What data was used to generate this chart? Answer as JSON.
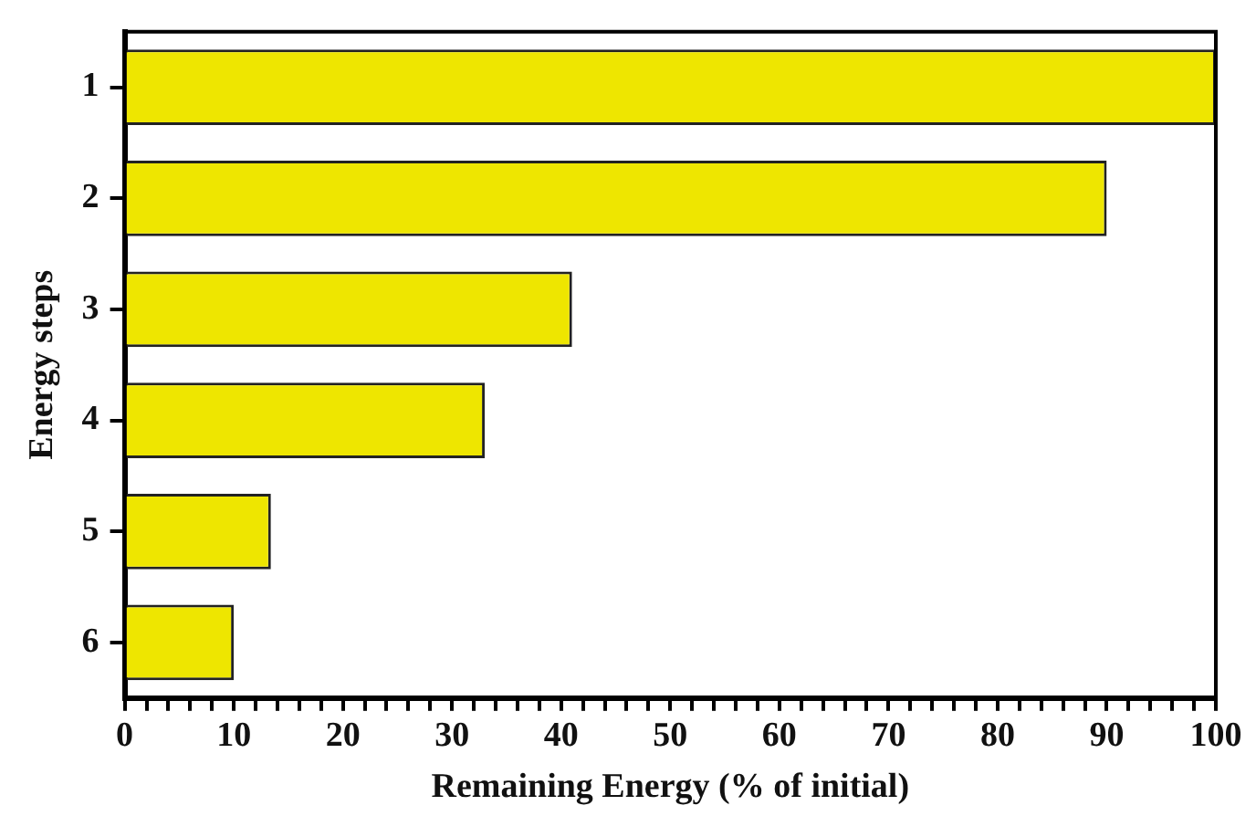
{
  "chart_data": {
    "type": "bar",
    "orientation": "horizontal",
    "xlabel": "Remaining Energy (% of initial)",
    "ylabel": "Energy steps",
    "categories": [
      "1",
      "2",
      "3",
      "4",
      "5",
      "6"
    ],
    "values": [
      100,
      90,
      41,
      33,
      13.4,
      10
    ],
    "color": "#eee600",
    "xlim": [
      0,
      100
    ],
    "xticks": [
      0,
      {
        "value": 2,
        "label": null
      },
      {
        "value": 4,
        "label": null
      },
      {
        "value": 6,
        "label": null
      },
      {
        "value": 8,
        "label": null
      },
      10,
      {
        "value": 12,
        "label": null
      },
      {
        "value": 14,
        "label": null
      },
      {
        "value": 16,
        "label": null
      },
      {
        "value": 18,
        "label": null
      },
      20,
      {
        "value": 22,
        "label": null
      },
      {
        "value": 24,
        "label": null
      },
      {
        "value": 26,
        "label": null
      },
      {
        "value": 28,
        "label": null
      },
      30,
      {
        "value": 32,
        "label": null
      },
      {
        "value": 34,
        "label": null
      },
      {
        "value": 36,
        "label": null
      },
      {
        "value": 38,
        "label": null
      },
      40,
      {
        "value": 42,
        "label": null
      },
      {
        "value": 44,
        "label": null
      },
      {
        "value": 46,
        "label": null
      },
      {
        "value": 48,
        "label": null
      },
      50,
      {
        "value": 52,
        "label": null
      },
      {
        "value": 54,
        "label": null
      },
      {
        "value": 56,
        "label": null
      },
      {
        "value": 58,
        "label": null
      },
      60,
      {
        "value": 62,
        "label": null
      },
      {
        "value": 64,
        "label": null
      },
      {
        "value": 66,
        "label": null
      },
      {
        "value": 68,
        "label": null
      },
      70,
      {
        "value": 72,
        "label": null
      },
      {
        "value": 74,
        "label": null
      },
      {
        "value": 76,
        "label": null
      },
      {
        "value": 78,
        "label": null
      },
      80,
      {
        "value": 82,
        "label": null
      },
      {
        "value": 84,
        "label": null
      },
      {
        "value": 86,
        "label": null
      },
      {
        "value": 88,
        "label": null
      },
      90,
      {
        "value": 92,
        "label": null
      },
      {
        "value": 94,
        "label": null
      },
      {
        "value": 96,
        "label": null
      },
      {
        "value": 98,
        "label": null
      },
      100
    ],
    "grid": false,
    "legend": false
  }
}
